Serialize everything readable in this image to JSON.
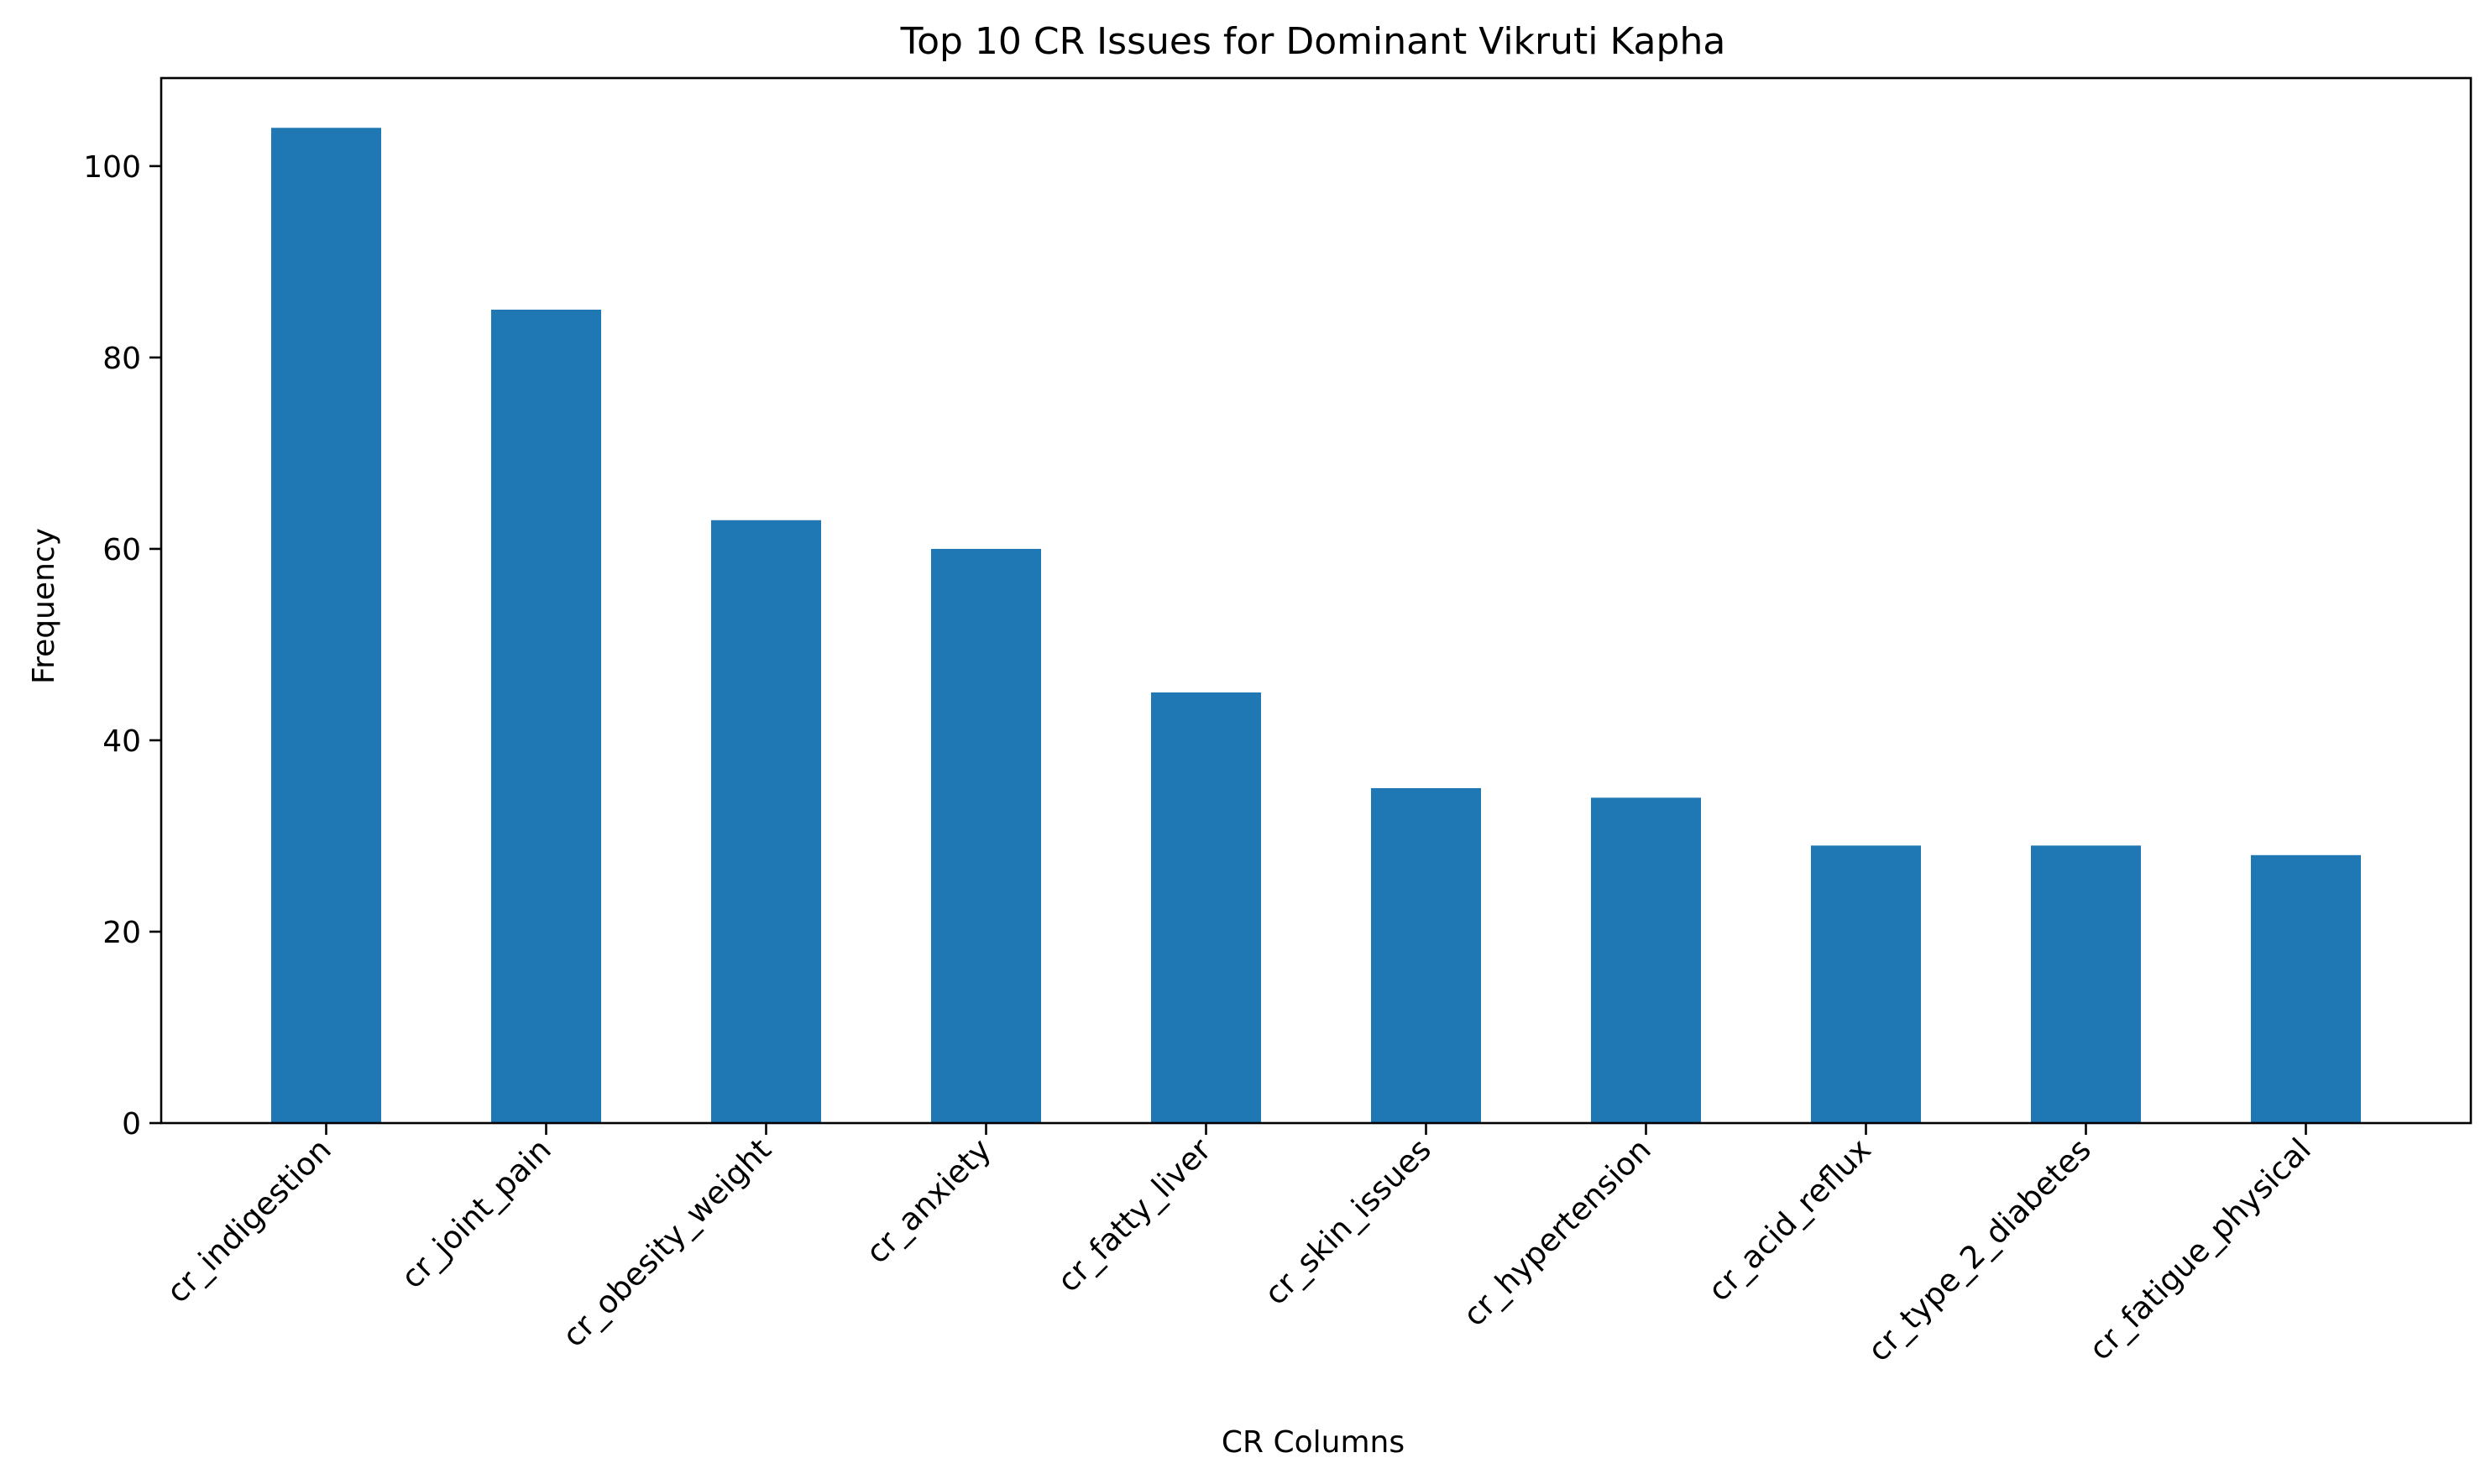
{
  "chart_data": {
    "type": "bar",
    "title": "Top 10 CR Issues for Dominant Vikruti Kapha",
    "xlabel": "CR Columns",
    "ylabel": "Frequency",
    "categories": [
      "cr_indigestion",
      "cr_joint_pain",
      "cr_obesity_weight",
      "cr_anxiety",
      "cr_fatty_liver",
      "cr_skin_issues",
      "cr_hypertension",
      "cr_acid_reflux",
      "cr_type_2_diabetes",
      "cr_fatigue_physical"
    ],
    "values": [
      104,
      85,
      63,
      60,
      45,
      35,
      34,
      29,
      29,
      28
    ],
    "ylim": [
      0,
      109.2
    ],
    "yticks": [
      0,
      20,
      40,
      60,
      80,
      100
    ],
    "bar_color": "#1f77b4",
    "grid": false,
    "legend": "none"
  }
}
